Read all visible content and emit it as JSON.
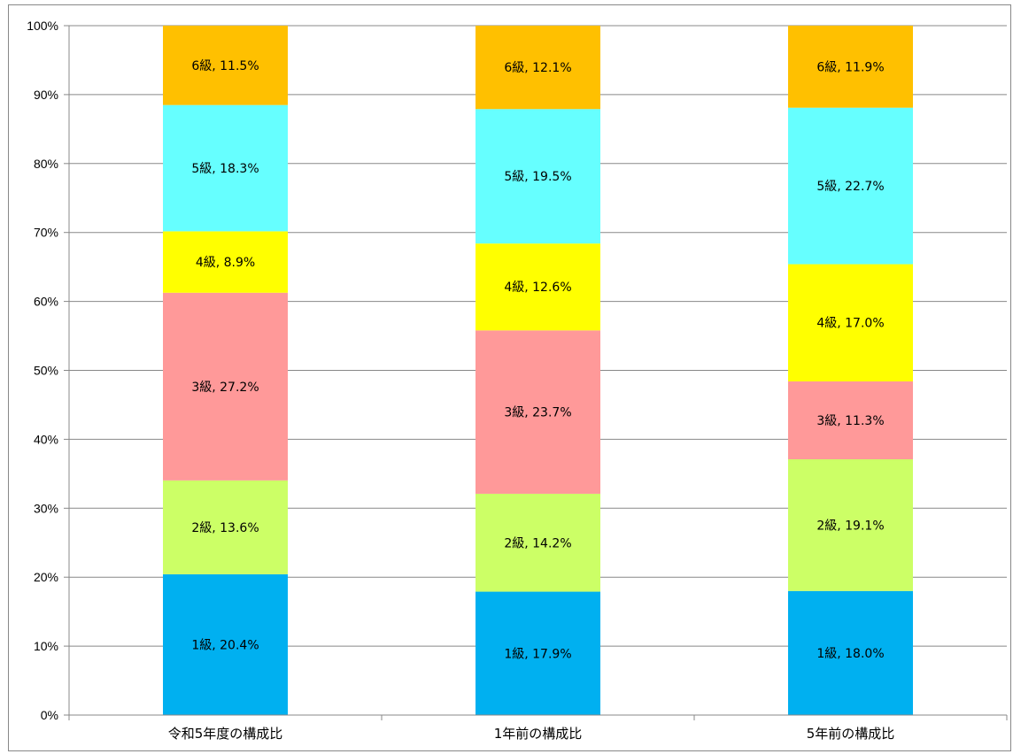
{
  "chart_data": {
    "type": "bar",
    "stacked": true,
    "percent": true,
    "categories": [
      "令和5年度の構成比",
      "1年前の構成比",
      "5年前の構成比"
    ],
    "series": [
      {
        "name": "1級",
        "color": "#00b0f0",
        "values": [
          20.4,
          17.9,
          18.0
        ],
        "labels": [
          "1級, 20.4%",
          "1級, 17.9%",
          "1級, 18.0%"
        ]
      },
      {
        "name": "2級",
        "color": "#ccff66",
        "values": [
          13.6,
          14.2,
          19.1
        ],
        "labels": [
          "2級, 13.6%",
          "2級, 14.2%",
          "2級, 19.1%"
        ]
      },
      {
        "name": "3級",
        "color": "#ff9999",
        "values": [
          27.2,
          23.7,
          11.3
        ],
        "labels": [
          "3級, 27.2%",
          "3級, 23.7%",
          "3級, 11.3%"
        ]
      },
      {
        "name": "4級",
        "color": "#ffff00",
        "values": [
          8.9,
          12.6,
          17.0
        ],
        "labels": [
          "4級, 8.9%",
          "4級, 12.6%",
          "4級, 17.0%"
        ]
      },
      {
        "name": "5級",
        "color": "#66ffff",
        "values": [
          18.3,
          19.5,
          22.7
        ],
        "labels": [
          "5級, 18.3%",
          "5級, 19.5%",
          "5級, 22.7%"
        ]
      },
      {
        "name": "6級",
        "color": "#ffc000",
        "values": [
          11.5,
          12.1,
          11.9
        ],
        "labels": [
          "6級, 11.5%",
          "6級, 12.1%",
          "6級, 11.9%"
        ]
      }
    ],
    "yticks": [
      "0%",
      "10%",
      "20%",
      "30%",
      "40%",
      "50%",
      "60%",
      "70%",
      "80%",
      "90%",
      "100%"
    ],
    "ylim": [
      0,
      100
    ],
    "grid": true,
    "legend": "none",
    "title": "",
    "xlabel": "",
    "ylabel": ""
  }
}
